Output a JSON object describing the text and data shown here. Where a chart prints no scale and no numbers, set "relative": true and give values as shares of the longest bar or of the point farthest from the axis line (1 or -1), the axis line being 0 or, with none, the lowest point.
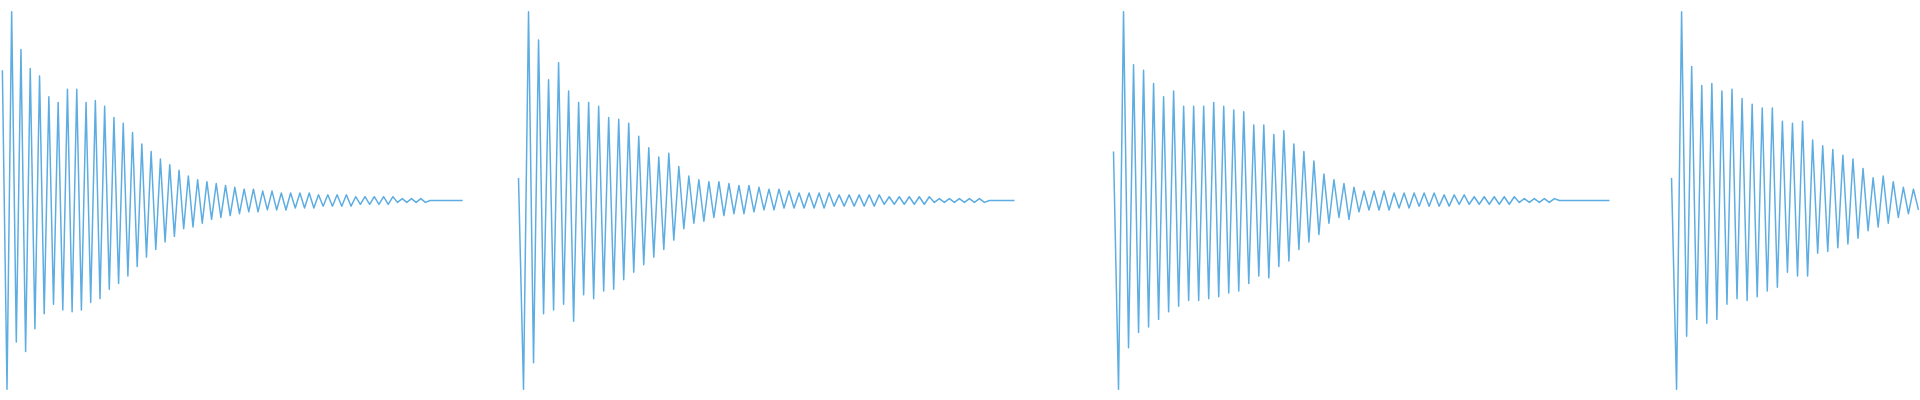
{
  "chart_data": [
    {
      "type": "line",
      "relative": true,
      "categories": [
        null,
        null,
        null,
        null,
        null,
        null,
        null,
        null,
        null,
        null,
        null,
        null,
        null,
        null,
        null,
        null,
        null,
        null,
        null,
        null,
        null,
        null,
        null,
        null,
        null,
        null,
        null,
        null,
        null,
        null,
        null,
        null,
        null,
        null,
        null,
        null,
        null,
        null,
        null,
        null,
        null,
        null,
        null,
        null,
        null,
        null,
        null,
        null,
        null,
        null,
        null,
        null,
        null,
        null,
        null,
        null,
        null,
        null,
        null,
        null,
        null,
        null,
        null,
        null,
        null,
        null,
        null,
        null,
        null,
        null,
        null,
        null,
        null,
        null,
        null,
        null,
        null,
        null,
        null,
        null,
        null,
        null,
        null,
        null,
        null,
        null,
        null,
        null,
        null,
        null,
        null,
        null,
        null,
        null,
        null,
        null,
        null,
        null,
        null,
        null
      ],
      "series": [
        {
          "color": "#5dade2",
          "values": [
            0.845,
            0,
            1,
            0.125,
            0.9,
            0.1,
            0.85,
            0.16,
            0.83,
            0.2,
            0.775,
            0.225,
            0.76,
            0.21,
            0.795,
            0.205,
            0.795,
            0.21,
            0.76,
            0.23,
            0.765,
            0.24,
            0.75,
            0.265,
            0.72,
            0.28,
            0.705,
            0.3,
            0.68,
            0.325,
            0.65,
            0.35,
            0.63,
            0.37,
            0.61,
            0.39,
            0.595,
            0.405,
            0.58,
            0.425,
            0.565,
            0.43,
            0.555,
            0.44,
            0.55,
            0.45,
            0.545,
            0.455,
            0.54,
            0.46,
            0.535,
            0.465,
            0.53,
            0.47,
            0.53,
            0.47,
            0.525,
            0.475,
            0.525,
            0.475,
            0.52,
            0.475,
            0.52,
            0.48,
            0.52,
            0.48,
            0.52,
            0.48,
            0.515,
            0.485,
            0.515,
            0.485,
            0.515,
            0.485,
            0.515,
            0.485,
            0.51,
            0.49,
            0.51,
            0.49,
            0.51,
            0.49,
            0.51,
            0.49,
            0.51,
            0.495,
            0.505,
            0.495,
            0.505,
            0.495,
            0.505,
            0.495,
            0.5,
            0.5,
            0.5,
            0.5,
            0.5,
            0.5,
            0.5,
            0.5
          ]
        }
      ]
    },
    {
      "type": "line",
      "relative": true,
      "categories": [
        null,
        null,
        null,
        null,
        null,
        null,
        null,
        null,
        null,
        null,
        null,
        null,
        null,
        null,
        null,
        null,
        null,
        null,
        null,
        null,
        null,
        null,
        null,
        null,
        null,
        null,
        null,
        null,
        null,
        null,
        null,
        null,
        null,
        null,
        null,
        null,
        null,
        null,
        null,
        null,
        null,
        null,
        null,
        null,
        null,
        null,
        null,
        null,
        null,
        null,
        null,
        null,
        null,
        null,
        null,
        null,
        null,
        null,
        null,
        null,
        null,
        null,
        null,
        null,
        null,
        null,
        null,
        null,
        null,
        null,
        null,
        null,
        null,
        null,
        null,
        null,
        null,
        null,
        null,
        null,
        null,
        null,
        null,
        null,
        null,
        null,
        null,
        null,
        null,
        null,
        null,
        null,
        null,
        null,
        null,
        null,
        null,
        null,
        null,
        null
      ],
      "series": [
        {
          "color": "#5dade2",
          "values": [
            0.56,
            0,
            1,
            0.07,
            0.925,
            0.2,
            0.82,
            0.21,
            0.865,
            0.225,
            0.79,
            0.18,
            0.76,
            0.25,
            0.76,
            0.24,
            0.75,
            0.26,
            0.72,
            0.265,
            0.715,
            0.29,
            0.705,
            0.31,
            0.67,
            0.33,
            0.64,
            0.35,
            0.615,
            0.37,
            0.625,
            0.395,
            0.59,
            0.425,
            0.565,
            0.44,
            0.555,
            0.445,
            0.55,
            0.455,
            0.55,
            0.46,
            0.545,
            0.465,
            0.54,
            0.465,
            0.54,
            0.47,
            0.535,
            0.475,
            0.53,
            0.475,
            0.53,
            0.48,
            0.525,
            0.48,
            0.52,
            0.48,
            0.52,
            0.48,
            0.52,
            0.48,
            0.52,
            0.485,
            0.515,
            0.485,
            0.515,
            0.485,
            0.515,
            0.485,
            0.515,
            0.485,
            0.515,
            0.49,
            0.51,
            0.49,
            0.51,
            0.49,
            0.51,
            0.49,
            0.51,
            0.49,
            0.51,
            0.495,
            0.505,
            0.495,
            0.505,
            0.495,
            0.505,
            0.495,
            0.505,
            0.495,
            0.505,
            0.495,
            0.5,
            0.5,
            0.5,
            0.5,
            0.5,
            0.5
          ]
        }
      ]
    },
    {
      "type": "line",
      "relative": true,
      "categories": [
        null,
        null,
        null,
        null,
        null,
        null,
        null,
        null,
        null,
        null,
        null,
        null,
        null,
        null,
        null,
        null,
        null,
        null,
        null,
        null,
        null,
        null,
        null,
        null,
        null,
        null,
        null,
        null,
        null,
        null,
        null,
        null,
        null,
        null,
        null,
        null,
        null,
        null,
        null,
        null,
        null,
        null,
        null,
        null,
        null,
        null,
        null,
        null,
        null,
        null,
        null,
        null,
        null,
        null,
        null,
        null,
        null,
        null,
        null,
        null,
        null,
        null,
        null,
        null,
        null,
        null,
        null,
        null,
        null,
        null,
        null,
        null,
        null,
        null,
        null,
        null,
        null,
        null,
        null,
        null,
        null,
        null,
        null,
        null,
        null,
        null,
        null,
        null,
        null,
        null,
        null,
        null,
        null,
        null,
        null,
        null,
        null,
        null,
        null,
        null
      ],
      "series": [
        {
          "color": "#5dade2",
          "values": [
            0.63,
            0,
            1,
            0.11,
            0.86,
            0.15,
            0.845,
            0.165,
            0.81,
            0.185,
            0.775,
            0.205,
            0.79,
            0.22,
            0.75,
            0.235,
            0.75,
            0.235,
            0.75,
            0.24,
            0.76,
            0.245,
            0.75,
            0.255,
            0.74,
            0.26,
            0.735,
            0.28,
            0.7,
            0.3,
            0.7,
            0.295,
            0.675,
            0.325,
            0.685,
            0.34,
            0.65,
            0.37,
            0.63,
            0.39,
            0.605,
            0.41,
            0.57,
            0.44,
            0.555,
            0.455,
            0.545,
            0.45,
            0.535,
            0.47,
            0.525,
            0.475,
            0.525,
            0.475,
            0.525,
            0.475,
            0.52,
            0.48,
            0.52,
            0.48,
            0.52,
            0.485,
            0.52,
            0.485,
            0.52,
            0.485,
            0.515,
            0.485,
            0.515,
            0.49,
            0.515,
            0.49,
            0.51,
            0.49,
            0.51,
            0.49,
            0.51,
            0.49,
            0.51,
            0.49,
            0.51,
            0.495,
            0.505,
            0.495,
            0.505,
            0.495,
            0.505,
            0.495,
            0.505,
            0.5,
            0.5,
            0.5,
            0.5,
            0.5,
            0.5,
            0.5,
            0.5,
            0.5,
            0.5,
            0.5
          ]
        }
      ]
    },
    {
      "type": "line",
      "relative": true,
      "categories": [
        null,
        null,
        null,
        null,
        null,
        null,
        null,
        null,
        null,
        null,
        null,
        null,
        null,
        null,
        null,
        null,
        null,
        null,
        null,
        null,
        null,
        null,
        null,
        null,
        null,
        null,
        null,
        null,
        null,
        null,
        null,
        null,
        null,
        null,
        null,
        null,
        null,
        null,
        null,
        null,
        null,
        null,
        null,
        null,
        null,
        null,
        null,
        null,
        null,
        null
      ],
      "series": [
        {
          "color": "#5dade2",
          "values": [
            0.56,
            0,
            1,
            0.14,
            0.855,
            0.185,
            0.805,
            0.175,
            0.81,
            0.185,
            0.79,
            0.225,
            0.795,
            0.24,
            0.77,
            0.235,
            0.755,
            0.245,
            0.745,
            0.26,
            0.745,
            0.27,
            0.71,
            0.31,
            0.705,
            0.3,
            0.71,
            0.3,
            0.66,
            0.36,
            0.645,
            0.365,
            0.635,
            0.375,
            0.62,
            0.385,
            0.61,
            0.4,
            0.585,
            0.42,
            0.56,
            0.43,
            0.565,
            0.44,
            0.55,
            0.455,
            0.535,
            0.465,
            0.53,
            0.475
          ]
        }
      ]
    }
  ]
}
